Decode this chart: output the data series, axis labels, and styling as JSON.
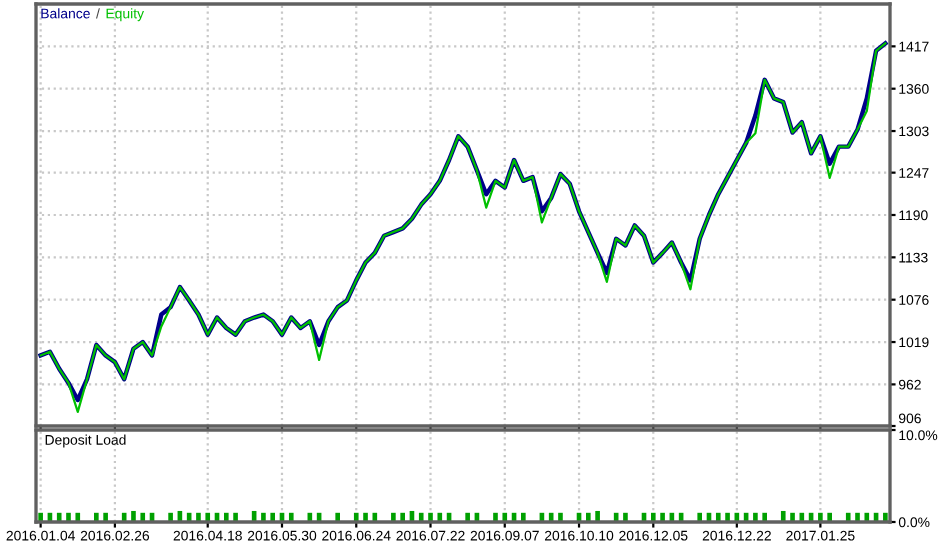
{
  "chart_data": [
    {
      "type": "line",
      "legend": "top left",
      "grid": true,
      "tick_labels": "y",
      "line_style": "solid",
      "annotations": [
        "/"
      ],
      "categories": [
        "2016.01.04",
        null,
        null,
        null,
        null,
        null,
        null,
        null,
        "2016.02.26",
        null,
        null,
        null,
        null,
        null,
        null,
        null,
        null,
        null,
        "2016.04.18",
        null,
        null,
        null,
        null,
        null,
        null,
        null,
        "2016.05.30",
        null,
        null,
        null,
        null,
        null,
        null,
        null,
        "2016.06.24",
        null,
        null,
        null,
        null,
        null,
        null,
        null,
        "2016.07.22",
        null,
        null,
        null,
        null,
        null,
        null,
        null,
        "2016.09.07",
        null,
        null,
        null,
        null,
        null,
        null,
        null,
        "2016.10.10",
        null,
        null,
        null,
        null,
        null,
        null,
        null,
        "2016.12.05",
        null,
        null,
        null,
        null,
        null,
        null,
        null,
        null,
        "2016.12.22",
        null,
        null,
        null,
        null,
        null,
        null,
        null,
        null,
        "2017.01.25",
        null,
        null,
        null,
        null,
        null,
        null,
        null
      ],
      "series": [
        {
          "name": "Equity",
          "color": "#00c000",
          "values": [
            1001,
            1006,
            983,
            964,
            925,
            969,
            1015,
            1001,
            992,
            969,
            1010,
            1019,
            1001,
            1040,
            1066,
            1093,
            1075,
            1056,
            1029,
            1052,
            1038,
            1029,
            1047,
            1052,
            1056,
            1047,
            1029,
            1052,
            1038,
            1047,
            995,
            1047,
            1066,
            1075,
            1102,
            1126,
            1139,
            1162,
            1167,
            1172,
            1185,
            1204,
            1218,
            1236,
            1264,
            1296,
            1282,
            1250,
            1200,
            1236,
            1227,
            1264,
            1236,
            1241,
            1180,
            1213,
            1245,
            1232,
            1195,
            1167,
            1139,
            1100,
            1158,
            1149,
            1176,
            1162,
            1126,
            1139,
            1153,
            1126,
            1090,
            1158,
            1190,
            1218,
            1241,
            1264,
            1287,
            1300,
            1372,
            1347,
            1342,
            1301,
            1315,
            1273,
            1296,
            1240,
            1282,
            1282,
            1305,
            1330,
            1411,
            1421
          ]
        },
        {
          "name": "Balance",
          "color": "#00008b",
          "values": [
            1001,
            1006,
            983,
            964,
            941,
            969,
            1015,
            1001,
            992,
            969,
            1010,
            1019,
            1001,
            1056,
            1066,
            1093,
            1075,
            1056,
            1029,
            1052,
            1038,
            1029,
            1047,
            1052,
            1056,
            1047,
            1029,
            1052,
            1038,
            1047,
            1015,
            1047,
            1066,
            1075,
            1102,
            1126,
            1139,
            1162,
            1167,
            1172,
            1185,
            1204,
            1218,
            1236,
            1264,
            1296,
            1282,
            1250,
            1218,
            1236,
            1227,
            1264,
            1236,
            1241,
            1195,
            1213,
            1245,
            1232,
            1195,
            1167,
            1139,
            1112,
            1158,
            1149,
            1176,
            1162,
            1126,
            1139,
            1153,
            1126,
            1102,
            1158,
            1190,
            1218,
            1241,
            1264,
            1287,
            1324,
            1372,
            1347,
            1342,
            1301,
            1315,
            1273,
            1296,
            1259,
            1282,
            1282,
            1305,
            1347,
            1411,
            1421
          ]
        }
      ],
      "ylim": [
        906,
        1474
      ],
      "yticks": [
        906,
        962,
        1019,
        1076,
        1133,
        1190,
        1247,
        1303,
        1360,
        1417
      ]
    },
    {
      "type": "bar",
      "title": "Deposit Load",
      "color": "#00a000",
      "grid": "x",
      "categories": [
        "2016.01.04",
        null,
        null,
        null,
        null,
        null,
        null,
        null,
        "2016.02.26",
        null,
        null,
        null,
        null,
        null,
        null,
        null,
        null,
        null,
        "2016.04.18",
        null,
        null,
        null,
        null,
        null,
        null,
        null,
        "2016.05.30",
        null,
        null,
        null,
        null,
        null,
        null,
        null,
        "2016.06.24",
        null,
        null,
        null,
        null,
        null,
        null,
        null,
        "2016.07.22",
        null,
        null,
        null,
        null,
        null,
        null,
        null,
        "2016.09.07",
        null,
        null,
        null,
        null,
        null,
        null,
        null,
        "2016.10.10",
        null,
        null,
        null,
        null,
        null,
        null,
        null,
        "2016.12.05",
        null,
        null,
        null,
        null,
        null,
        null,
        null,
        null,
        "2016.12.22",
        null,
        null,
        null,
        null,
        null,
        null,
        null,
        null,
        "2017.01.25",
        null,
        null,
        null,
        null,
        null,
        null,
        null
      ],
      "values": [
        1,
        1,
        1,
        1,
        1,
        null,
        1,
        1,
        null,
        1,
        1.2,
        1,
        1,
        null,
        1,
        1.2,
        1,
        1,
        1,
        1,
        1,
        1,
        null,
        1.2,
        1,
        1,
        1,
        1,
        null,
        1,
        1,
        null,
        1,
        null,
        1,
        1,
        1,
        null,
        1,
        1,
        1.2,
        1,
        1,
        1,
        1,
        null,
        1,
        1,
        null,
        1,
        1,
        1,
        1,
        null,
        1,
        1,
        1,
        null,
        1,
        1,
        1.2,
        null,
        1,
        1,
        null,
        1,
        1,
        1,
        1,
        1,
        null,
        1,
        1,
        1,
        1,
        1,
        1,
        1,
        1,
        null,
        1.2,
        1,
        1,
        1,
        1,
        1,
        null,
        1,
        1,
        1,
        1,
        1
      ],
      "ylim": [
        0,
        10
      ],
      "yticks": [
        {
          "value": 0,
          "label": "0.0%"
        },
        {
          "value": 10,
          "label": "10.0%"
        }
      ]
    }
  ]
}
